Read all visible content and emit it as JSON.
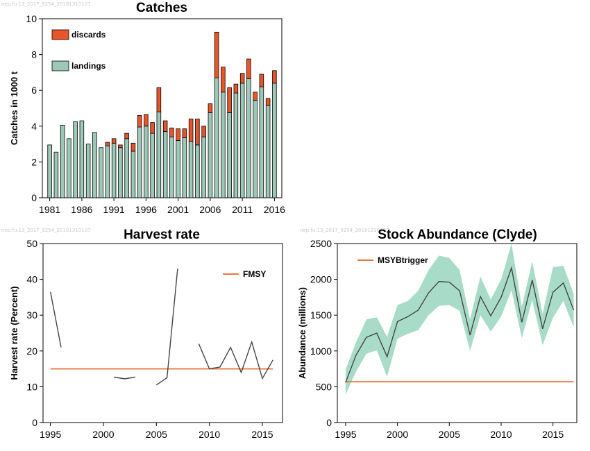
{
  "watermarks": [
    "nep.fu.13_2017_9254_20181310107",
    "nep.fu.13_2017_9254_20181310107",
    "nep.fu.13_2017_9254_20181310107"
  ],
  "colors": {
    "landings": "#9dc8b8",
    "discards": "#e8552a",
    "reference_line": "#e8773c",
    "line": "#444444",
    "band": "#a8dcc8"
  },
  "chart_data": [
    {
      "id": "catches",
      "type": "bar",
      "title": "Catches",
      "xlabel": "",
      "ylabel": "Catches in 1000 t",
      "ylim": [
        0,
        10
      ],
      "yticks": [
        0,
        2,
        4,
        6,
        8,
        10
      ],
      "xticks": [
        1981,
        1986,
        1991,
        1996,
        2001,
        2006,
        2011,
        2016
      ],
      "legend_position": "top-left",
      "categories": [
        1981,
        1982,
        1983,
        1984,
        1985,
        1986,
        1987,
        1988,
        1989,
        1990,
        1991,
        1992,
        1993,
        1994,
        1995,
        1996,
        1997,
        1998,
        1999,
        2000,
        2001,
        2002,
        2003,
        2004,
        2005,
        2006,
        2007,
        2008,
        2009,
        2010,
        2011,
        2012,
        2013,
        2014,
        2015,
        2016
      ],
      "series": [
        {
          "name": "landings",
          "values": [
            2.95,
            2.55,
            4.05,
            3.3,
            4.25,
            4.3,
            3.0,
            3.65,
            2.8,
            2.9,
            3.05,
            2.8,
            3.3,
            2.6,
            3.95,
            4.0,
            3.6,
            4.8,
            3.7,
            3.4,
            3.2,
            3.35,
            3.15,
            2.95,
            3.4,
            4.75,
            6.7,
            5.9,
            4.75,
            5.85,
            6.4,
            6.65,
            5.45,
            6.2,
            5.15,
            6.4
          ]
        },
        {
          "name": "discards",
          "values": [
            0,
            0,
            0,
            0,
            0,
            0,
            0,
            0,
            0,
            0.2,
            0.25,
            0.15,
            0.3,
            0.45,
            0.65,
            0.65,
            0.6,
            1.35,
            0.6,
            0.5,
            0.65,
            0.5,
            1.25,
            1.45,
            0.6,
            0.5,
            2.55,
            1.4,
            1.4,
            0.5,
            0.55,
            1.1,
            0.45,
            0.7,
            0.4,
            0.7
          ]
        }
      ]
    },
    {
      "id": "harvest",
      "type": "line",
      "title": "Harvest rate",
      "xlabel": "",
      "ylabel": "Harvest rate (Percent)",
      "ylim": [
        0,
        50
      ],
      "yticks": [
        0,
        10,
        20,
        30,
        40,
        50
      ],
      "xlim": [
        1994.3,
        2016.9
      ],
      "xticks": [
        1995,
        2000,
        2005,
        2010,
        2015
      ],
      "legend_position": "top-right",
      "segments": [
        {
          "x": [
            1995,
            1996
          ],
          "y": [
            36.5,
            21
          ]
        },
        {
          "x": [
            2001,
            2002,
            2003
          ],
          "y": [
            12.7,
            12.2,
            12.7
          ]
        },
        {
          "x": [
            2005,
            2006,
            2007
          ],
          "y": [
            10.5,
            12.5,
            43
          ]
        },
        {
          "x": [
            2009,
            2010,
            2011,
            2012,
            2013,
            2014,
            2015,
            2016
          ],
          "y": [
            22,
            15,
            15.5,
            21,
            14,
            22.5,
            12.3,
            17.5
          ]
        }
      ],
      "reference": {
        "name": "FMSY",
        "value": 15
      }
    },
    {
      "id": "abundance",
      "type": "area",
      "title": "Stock Abundance (Clyde)",
      "xlabel": "",
      "ylabel": "Abundance (millions)",
      "ylim": [
        0,
        2500
      ],
      "yticks": [
        0,
        500,
        1000,
        1500,
        2000,
        2500
      ],
      "xlim": [
        1994.2,
        2017.3
      ],
      "xticks": [
        1995,
        2000,
        2005,
        2010,
        2015
      ],
      "legend_position": "top-left",
      "x": [
        1995,
        1996,
        1997,
        1998,
        1999,
        2000,
        2001,
        2002,
        2003,
        2004,
        2005,
        2006,
        2007,
        2008,
        2009,
        2010,
        2011,
        2012,
        2013,
        2014,
        2015,
        2016,
        2017
      ],
      "y": [
        560,
        940,
        1190,
        1250,
        920,
        1410,
        1480,
        1570,
        1810,
        1970,
        1960,
        1840,
        1220,
        1760,
        1490,
        1750,
        2160,
        1400,
        1990,
        1310,
        1820,
        1950,
        1570
      ],
      "upper": [
        740,
        1120,
        1440,
        1470,
        1200,
        1640,
        1700,
        1840,
        2130,
        2330,
        2300,
        2130,
        1440,
        2040,
        1720,
        2000,
        2510,
        1620,
        2250,
        1520,
        2170,
        2190,
        1800
      ],
      "lower": [
        390,
        710,
        960,
        1010,
        640,
        1170,
        1240,
        1290,
        1500,
        1630,
        1640,
        1560,
        1000,
        1500,
        1270,
        1480,
        1850,
        1180,
        1710,
        1080,
        1460,
        1700,
        1330
      ],
      "reference": {
        "name": "MSYBtrigger",
        "value": 570
      }
    }
  ]
}
